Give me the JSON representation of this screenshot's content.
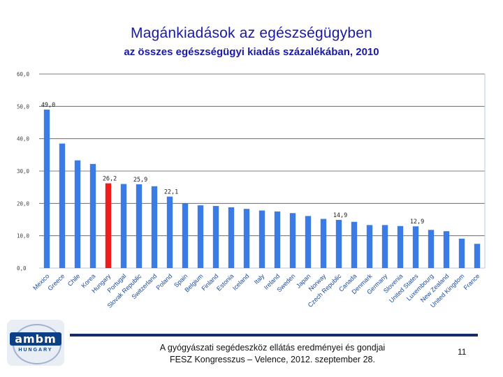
{
  "header": {
    "title": "Magánkiadások az egészségügyben",
    "subtitle": "az összes egészségügyi kiadás százalékában, 2010"
  },
  "chart_data": {
    "type": "bar",
    "categories": [
      "Mexico",
      "Greece",
      "Chile",
      "Korea",
      "Hungary",
      "Portugal",
      "Slovak Republic",
      "Switzerland",
      "Poland",
      "Spain",
      "Belgium",
      "Finland",
      "Estonia",
      "Iceland",
      "Italy",
      "Ireland",
      "Sweden",
      "Japan",
      "Norway",
      "Czech Republic",
      "Canada",
      "Denmark",
      "Germany",
      "Slovenia",
      "United States",
      "Luxembourg",
      "New Zealand",
      "United Kingdom",
      "France"
    ],
    "values": [
      49.0,
      38.5,
      33.3,
      32.2,
      26.2,
      26.0,
      25.9,
      25.3,
      22.1,
      20.0,
      19.4,
      19.2,
      18.8,
      18.3,
      17.8,
      17.5,
      17.0,
      16.1,
      15.2,
      14.9,
      14.3,
      13.3,
      13.3,
      13.0,
      12.9,
      11.8,
      11.4,
      9.1,
      7.5
    ],
    "labels": {
      "0": "49,0",
      "4": "26,2",
      "6": "25,9",
      "8": "22,1",
      "19": "14,9",
      "24": "12,9"
    },
    "highlight_index": 4,
    "ylim": [
      0,
      60
    ],
    "yticks": [
      "0,0",
      "10,0",
      "20,0",
      "30,0",
      "40,0",
      "50,0",
      "60,0"
    ],
    "colors": {
      "bar": "#3a7be6",
      "highlight": "#ee1c1c",
      "grid": "#555555",
      "axis": "#b7c9e6"
    }
  },
  "footer": {
    "line1": "A gyógyászati segédeszköz ellátás eredményei és gondjai",
    "line2": "FESZ Kongresszus – Velence, 2012. szeptember 28.",
    "page_number": "11"
  },
  "logo": {
    "main": "ambm",
    "sub": "HUNGARY"
  }
}
